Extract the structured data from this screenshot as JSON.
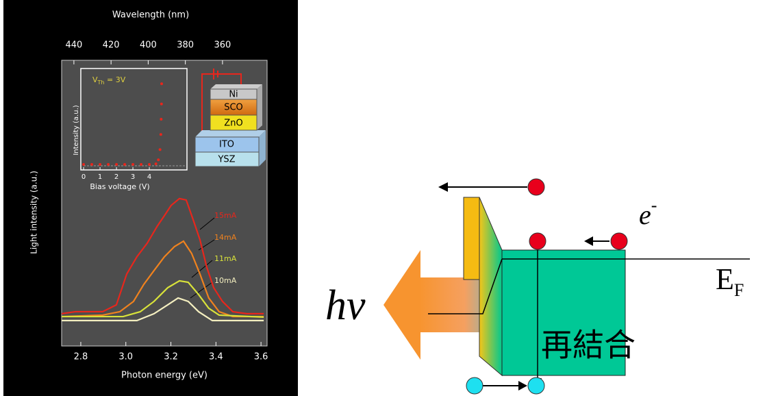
{
  "chart_data": [
    {
      "type": "line",
      "title": "Wavelength (nm)",
      "xlabel": "Photon energy (eV)",
      "ylabel": "Light intensity (a.u.)",
      "xlim": [
        2.715,
        3.627
      ],
      "xticks": [
        2.8,
        {
          "value": 3,
          "label": "3.0"
        },
        3.2,
        3.4,
        3.6
      ],
      "x2lim": [
        446.6,
        336.0
      ],
      "x2ticks": [
        440,
        420,
        400,
        380,
        360
      ],
      "ylim": [
        0,
        1
      ],
      "series": [
        {
          "name": "15mA",
          "color": "#e8261c",
          "x": [
            2.715,
            2.776,
            2.836,
            2.897,
            2.958,
            3.004,
            3.049,
            3.095,
            3.14,
            3.171,
            3.201,
            3.238,
            3.268,
            3.298,
            3.329,
            3.359,
            3.39,
            3.429,
            3.475,
            3.536,
            3.612
          ],
          "values": [
            0.113,
            0.12,
            0.12,
            0.12,
            0.144,
            0.252,
            0.312,
            0.36,
            0.42,
            0.456,
            0.492,
            0.516,
            0.511,
            0.444,
            0.372,
            0.276,
            0.204,
            0.156,
            0.12,
            0.113,
            0.113
          ]
        },
        {
          "name": "14mA",
          "color": "#f0821e",
          "x": [
            2.715,
            2.897,
            2.973,
            3.034,
            3.08,
            3.125,
            3.171,
            3.216,
            3.256,
            3.292,
            3.329,
            3.368,
            3.414,
            3.475,
            3.612
          ],
          "values": [
            0.103,
            0.108,
            0.12,
            0.156,
            0.216,
            0.264,
            0.312,
            0.348,
            0.367,
            0.324,
            0.252,
            0.168,
            0.12,
            0.103,
            0.103
          ]
        },
        {
          "name": "11mA",
          "color": "#d8e23a",
          "x": [
            2.715,
            2.988,
            3.064,
            3.125,
            3.186,
            3.238,
            3.277,
            3.323,
            3.368,
            3.414,
            3.612
          ],
          "values": [
            0.103,
            0.103,
            0.12,
            0.156,
            0.204,
            0.228,
            0.223,
            0.18,
            0.132,
            0.108,
            0.101
          ]
        },
        {
          "name": "10mA",
          "color": "#f4efc0",
          "x": [
            2.715,
            3.049,
            3.125,
            3.186,
            3.232,
            3.277,
            3.323,
            3.384,
            3.612
          ],
          "values": [
            0.089,
            0.089,
            0.113,
            0.144,
            0.168,
            0.156,
            0.12,
            0.089,
            0.089
          ]
        }
      ]
    },
    {
      "type": "scatter",
      "annotation_parts": [
        "V",
        "Th",
        " = 3V"
      ],
      "xlabel": "Bias voltage (V)",
      "ylabel": "Intensity (a.u.)",
      "xlim": [
        -0.17,
        6.29
      ],
      "xticks": [
        0,
        1,
        2,
        3,
        4
      ],
      "ylim": [
        0,
        1
      ],
      "color": "#e8261c",
      "x": [
        0,
        0.5,
        1,
        1.5,
        2,
        2.5,
        3,
        3.5,
        4,
        4.4,
        4.55,
        4.65,
        4.7,
        4.72,
        4.74,
        4.75
      ],
      "values": [
        0.054,
        0.054,
        0.054,
        0.054,
        0.054,
        0.054,
        0.054,
        0.054,
        0.054,
        0.06,
        0.1,
        0.2,
        0.35,
        0.5,
        0.65,
        0.85
      ],
      "device_layers": [
        "Ni",
        "SCO",
        "ZnO",
        "ITO",
        "YSZ"
      ]
    }
  ],
  "diagram": {
    "electron": "e",
    "electron_sup": "-",
    "fermi": "E",
    "fermi_sub": "F",
    "photon": "hν",
    "recombination": "再結合"
  }
}
